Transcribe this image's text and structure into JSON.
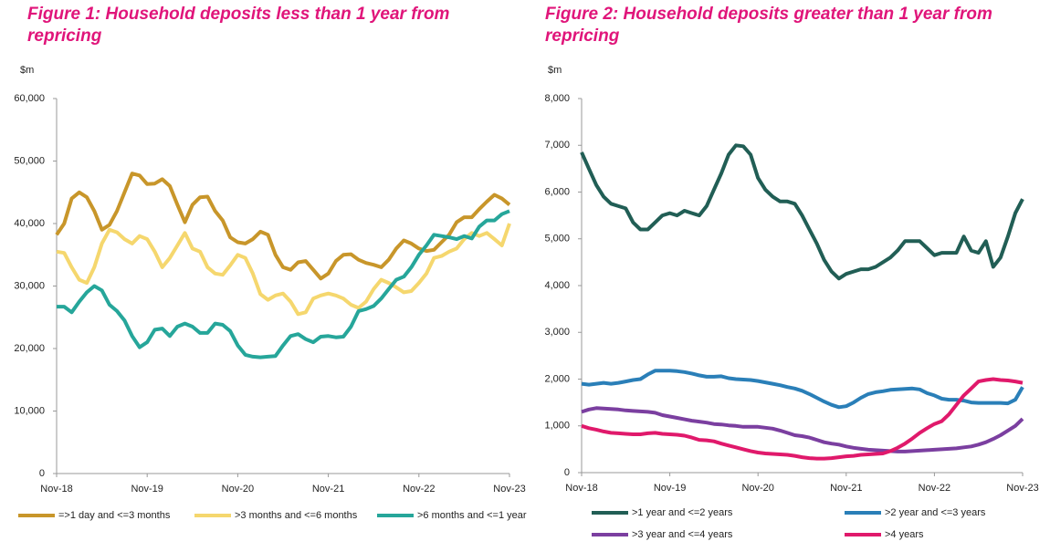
{
  "chart_data": [
    {
      "type": "line",
      "title": "Figure 1: Household deposits less than 1 year from repricing",
      "y_label": "$m",
      "categories": [
        "Nov-18",
        null,
        null,
        null,
        null,
        null,
        null,
        null,
        null,
        null,
        null,
        null,
        "Nov-19",
        null,
        null,
        null,
        null,
        null,
        null,
        null,
        null,
        null,
        null,
        null,
        "Nov-20",
        null,
        null,
        null,
        null,
        null,
        null,
        null,
        null,
        null,
        null,
        null,
        "Nov-21",
        null,
        null,
        null,
        null,
        null,
        null,
        null,
        null,
        null,
        null,
        null,
        "Nov-22",
        null,
        null,
        null,
        null,
        null,
        null,
        null,
        null,
        null,
        null,
        null,
        "Nov-23"
      ],
      "ylim": [
        0,
        60000
      ],
      "yticks": [
        0,
        {
          "value": 10000,
          "label": "10,000"
        },
        {
          "value": 20000,
          "label": "20,000"
        },
        {
          "value": 30000,
          "label": "30,000"
        },
        {
          "value": 40000,
          "label": "40,000"
        },
        {
          "value": 50000,
          "label": "50,000"
        },
        {
          "value": 60000,
          "label": "60,000"
        }
      ],
      "series": [
        {
          "name": "=>1 day and <=3 months",
          "color": "#c8962a",
          "values": [
            38200,
            40000,
            44000,
            45000,
            44200,
            42000,
            39000,
            39800,
            42000,
            45000,
            48000,
            47700,
            46300,
            46400,
            47100,
            46000,
            43000,
            40200,
            43000,
            44200,
            44300,
            42000,
            40500,
            37800,
            37000,
            36800,
            37500,
            38700,
            38200,
            35000,
            33000,
            32600,
            33800,
            34000,
            32600,
            31200,
            32000,
            34000,
            35000,
            35100,
            34200,
            33700,
            33400,
            33000,
            34200,
            36000,
            37300,
            36800,
            36000,
            35600,
            35800,
            37000,
            38200,
            40200,
            41000,
            41000,
            42300,
            43500,
            44600,
            44000,
            43000
          ]
        },
        {
          "name": ">3 months and <=6 months",
          "color": "#f5d76e",
          "values": [
            35500,
            35300,
            33000,
            31000,
            30500,
            33000,
            36800,
            39000,
            38600,
            37500,
            36800,
            38000,
            37500,
            35500,
            33000,
            34500,
            36500,
            38500,
            36000,
            35500,
            33000,
            32000,
            31800,
            33300,
            35000,
            34500,
            32000,
            28700,
            27800,
            28500,
            28800,
            27500,
            25500,
            25800,
            28000,
            28500,
            28800,
            28500,
            28000,
            27000,
            26500,
            27500,
            29500,
            31000,
            30500,
            29800,
            29000,
            29200,
            30500,
            32000,
            34500,
            34800,
            35500,
            36000,
            37500,
            38500,
            38000,
            38500,
            37500,
            36500,
            40000
          ]
        },
        {
          "name": ">6 months and <=1 year",
          "color": "#26a69a",
          "values": [
            26700,
            26700,
            25800,
            27500,
            29000,
            30000,
            29300,
            27000,
            26000,
            24500,
            22000,
            20200,
            21000,
            23000,
            23200,
            22000,
            23500,
            24000,
            23500,
            22500,
            22500,
            24000,
            23800,
            22800,
            20500,
            19000,
            18700,
            18600,
            18700,
            18800,
            20500,
            22000,
            22300,
            21500,
            21000,
            21900,
            22000,
            21800,
            21900,
            23500,
            26000,
            26300,
            26800,
            28000,
            29500,
            31000,
            31500,
            33000,
            35000,
            36500,
            38200,
            38000,
            37800,
            37500,
            38000,
            37600,
            39500,
            40500,
            40500,
            41500,
            42000
          ]
        }
      ]
    },
    {
      "type": "line",
      "title": "Figure 2: Household deposits greater than 1 year from repricing",
      "y_label": "$m",
      "categories": [
        "Nov-18",
        null,
        null,
        null,
        null,
        null,
        null,
        null,
        null,
        null,
        null,
        null,
        "Nov-19",
        null,
        null,
        null,
        null,
        null,
        null,
        null,
        null,
        null,
        null,
        null,
        "Nov-20",
        null,
        null,
        null,
        null,
        null,
        null,
        null,
        null,
        null,
        null,
        null,
        "Nov-21",
        null,
        null,
        null,
        null,
        null,
        null,
        null,
        null,
        null,
        null,
        null,
        "Nov-22",
        null,
        null,
        null,
        null,
        null,
        null,
        null,
        null,
        null,
        null,
        null,
        "Nov-23"
      ],
      "ylim": [
        0,
        8000
      ],
      "yticks": [
        0,
        {
          "value": 1000,
          "label": "1,000"
        },
        {
          "value": 2000,
          "label": "2,000"
        },
        {
          "value": 3000,
          "label": "3,000"
        },
        {
          "value": 4000,
          "label": "4,000"
        },
        {
          "value": 5000,
          "label": "5,000"
        },
        {
          "value": 6000,
          "label": "6,000"
        },
        {
          "value": 7000,
          "label": "7,000"
        },
        {
          "value": 8000,
          "label": "8,000"
        }
      ],
      "series": [
        {
          "name": ">1 year and <=2 years",
          "color": "#215e55",
          "values": [
            6850,
            6500,
            6150,
            5900,
            5750,
            5700,
            5650,
            5350,
            5200,
            5200,
            5350,
            5500,
            5550,
            5500,
            5600,
            5550,
            5500,
            5700,
            6050,
            6400,
            6800,
            7000,
            6980,
            6800,
            6300,
            6050,
            5900,
            5800,
            5800,
            5750,
            5500,
            5200,
            4900,
            4550,
            4300,
            4150,
            4250,
            4300,
            4350,
            4350,
            4400,
            4500,
            4600,
            4750,
            4950,
            4950,
            4950,
            4800,
            4650,
            4700,
            4700,
            4700,
            5050,
            4750,
            4700,
            4950,
            4400,
            4600,
            5050,
            5550,
            5850
          ]
        },
        {
          "name": ">2 year and <=3 years",
          "color": "#2a7fb8",
          "values": [
            1900,
            1880,
            1900,
            1920,
            1900,
            1920,
            1950,
            1980,
            2000,
            2100,
            2180,
            2180,
            2180,
            2170,
            2150,
            2120,
            2080,
            2050,
            2050,
            2060,
            2020,
            2000,
            1990,
            1980,
            1960,
            1930,
            1900,
            1870,
            1830,
            1800,
            1750,
            1680,
            1600,
            1520,
            1450,
            1400,
            1420,
            1500,
            1600,
            1680,
            1720,
            1740,
            1770,
            1780,
            1790,
            1800,
            1780,
            1700,
            1650,
            1580,
            1560,
            1560,
            1540,
            1500,
            1490,
            1490,
            1490,
            1490,
            1480,
            1560,
            1830
          ]
        },
        {
          "name": ">3 year and <=4 years",
          "color": "#7b3fa0",
          "values": [
            1300,
            1350,
            1380,
            1370,
            1360,
            1350,
            1330,
            1320,
            1310,
            1300,
            1280,
            1230,
            1200,
            1170,
            1140,
            1110,
            1090,
            1070,
            1040,
            1030,
            1010,
            1000,
            980,
            980,
            980,
            960,
            940,
            900,
            850,
            800,
            780,
            750,
            700,
            650,
            620,
            600,
            560,
            530,
            510,
            490,
            480,
            470,
            460,
            450,
            450,
            460,
            470,
            480,
            490,
            500,
            510,
            520,
            540,
            560,
            600,
            650,
            720,
            800,
            900,
            1000,
            1150
          ]
        },
        {
          "name": ">4 years",
          "color": "#e0196b",
          "values": [
            1000,
            950,
            920,
            880,
            850,
            840,
            830,
            820,
            820,
            840,
            850,
            830,
            820,
            810,
            790,
            750,
            700,
            690,
            670,
            620,
            580,
            540,
            500,
            460,
            430,
            410,
            400,
            390,
            380,
            360,
            330,
            310,
            300,
            300,
            310,
            330,
            350,
            360,
            380,
            390,
            400,
            410,
            460,
            530,
            620,
            730,
            850,
            950,
            1040,
            1100,
            1250,
            1450,
            1650,
            1800,
            1950,
            1980,
            2000,
            1980,
            1970,
            1950,
            1920
          ]
        }
      ]
    }
  ]
}
